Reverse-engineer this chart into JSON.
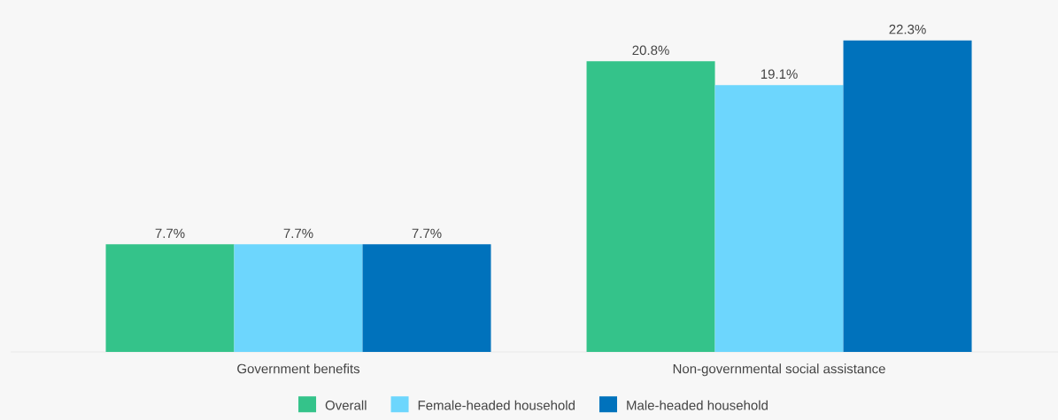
{
  "chart_data": {
    "type": "bar",
    "categories": [
      "Government benefits",
      "Non-governmental social assistance"
    ],
    "series": [
      {
        "name": "Overall",
        "color": "#34c38a",
        "values": [
          7.7,
          20.8
        ],
        "value_labels": [
          "7.7%",
          "20.8%"
        ]
      },
      {
        "name": "Female-headed household",
        "color": "#6dd6fd",
        "values": [
          7.7,
          19.1
        ],
        "value_labels": [
          "7.7%",
          "19.1%"
        ]
      },
      {
        "name": "Male-headed household",
        "color": "#0072bc",
        "values": [
          7.7,
          22.3
        ],
        "value_labels": [
          "7.7%",
          "22.3%"
        ]
      }
    ],
    "ylim": [
      0,
      25
    ],
    "tick_labels": "x",
    "legend": "bottom"
  }
}
